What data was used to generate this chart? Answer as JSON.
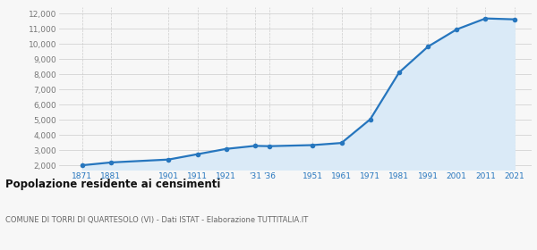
{
  "years": [
    1871,
    1881,
    1901,
    1911,
    1921,
    1931,
    1936,
    1951,
    1961,
    1971,
    1981,
    1991,
    2001,
    2011,
    2021
  ],
  "population": [
    2012,
    2198,
    2390,
    2740,
    3090,
    3290,
    3270,
    3340,
    3480,
    5040,
    8120,
    9820,
    10960,
    11680,
    11620
  ],
  "line_color": "#2676be",
  "fill_color": "#daeaf7",
  "marker_color": "#2676be",
  "grid_color": "#cccccc",
  "background_color": "#f7f7f7",
  "title": "Popolazione residente ai censimenti",
  "subtitle": "COMUNE DI TORRI DI QUARTESOLO (VI) - Dati ISTAT - Elaborazione TUTTITALIA.IT",
  "ylim": [
    1700,
    12400
  ],
  "yticks": [
    2000,
    3000,
    4000,
    5000,
    6000,
    7000,
    8000,
    9000,
    10000,
    11000,
    12000
  ],
  "ytick_labels": [
    "2,000",
    "3,000",
    "4,000",
    "5,000",
    "6,000",
    "7,000",
    "8,000",
    "9,000",
    "10,000",
    "11,000",
    "12,000"
  ],
  "xlim": [
    1863,
    2027
  ],
  "xtick_pos": [
    1871,
    1881,
    1901,
    1911,
    1921,
    1931,
    1936,
    1951,
    1961,
    1971,
    1981,
    1991,
    2001,
    2011,
    2021
  ],
  "xtick_labels": [
    "1871",
    "1881",
    "1901",
    "1911",
    "1921",
    "'31",
    "'36",
    "1951",
    "1961",
    "1971",
    "1981",
    "1991",
    "2001",
    "2011",
    "2021"
  ]
}
